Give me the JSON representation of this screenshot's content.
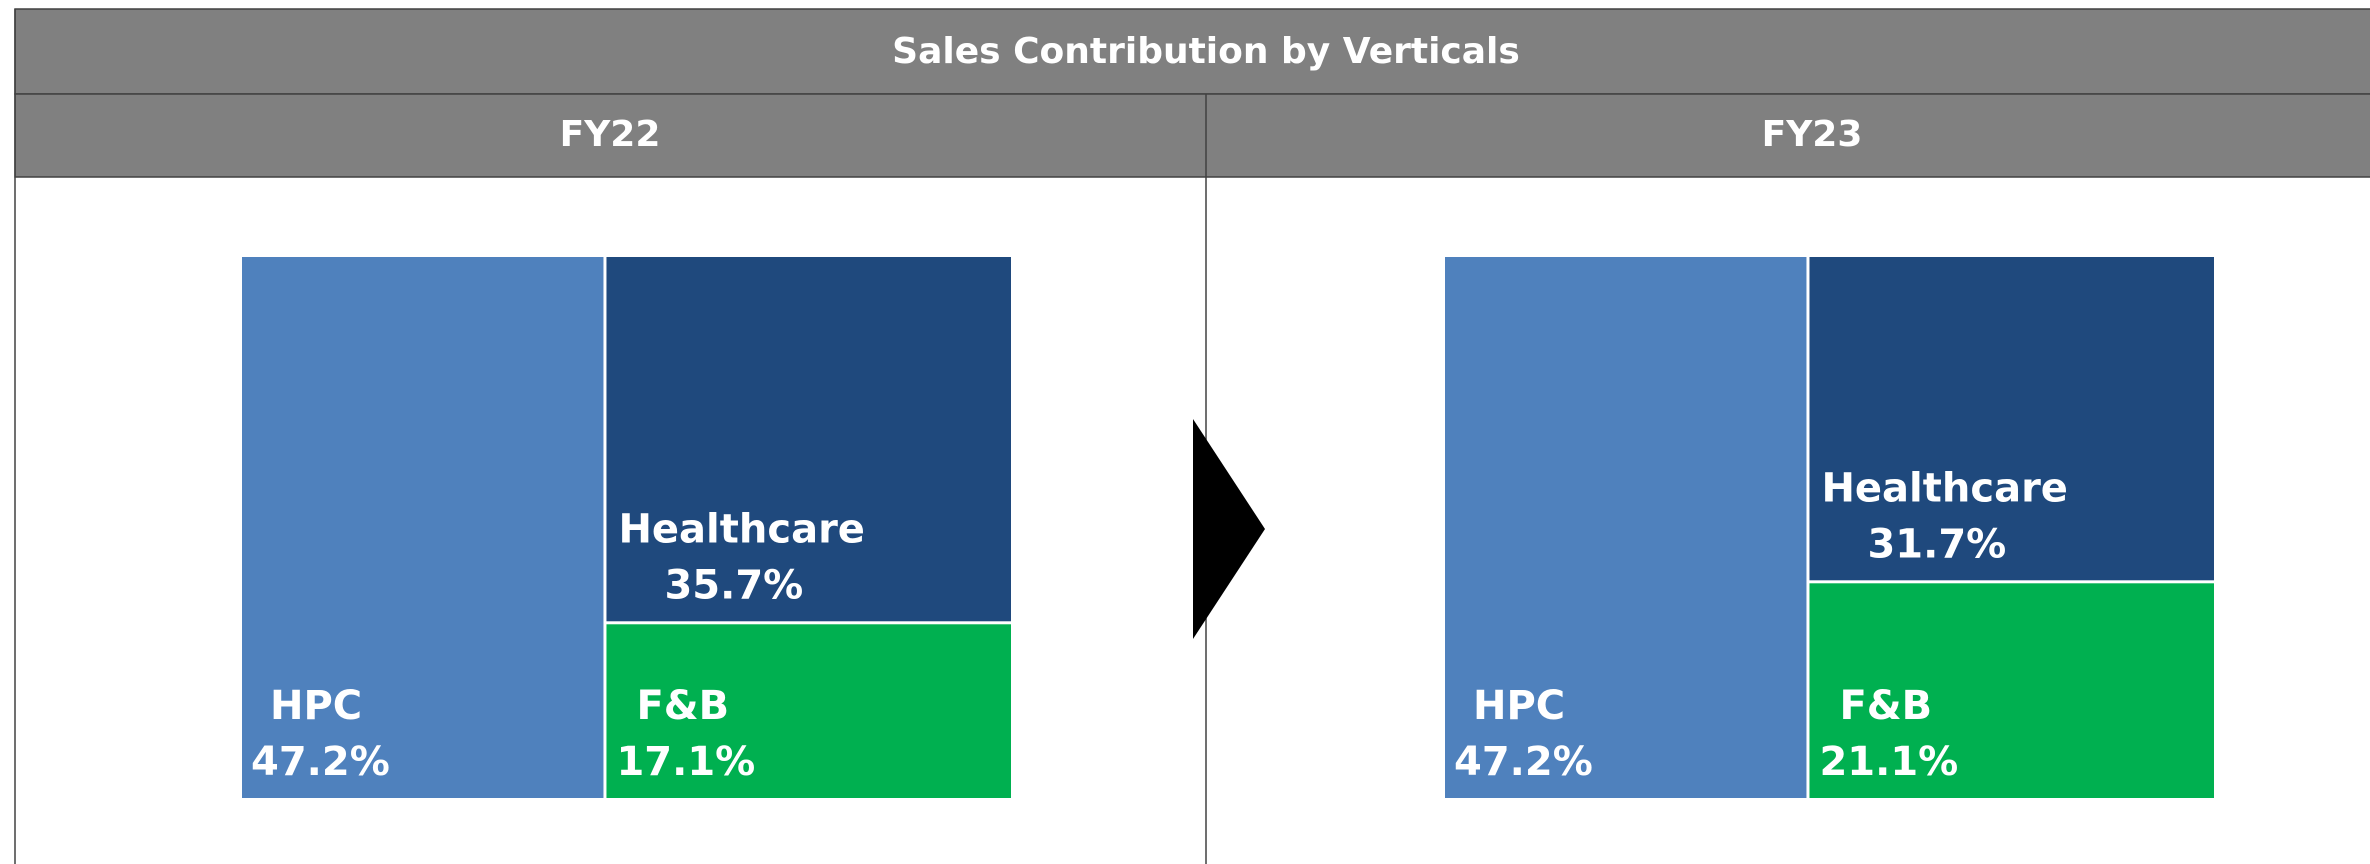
{
  "title": "Sales Contribution by Verticals",
  "chart_data": [
    {
      "type": "treemap",
      "title": "FY22",
      "categories": [
        "HPC",
        "Healthcare",
        "F&B"
      ],
      "values": [
        47.2,
        35.7,
        17.1
      ],
      "value_labels": [
        "47.2%",
        "35.7%",
        "17.1%"
      ],
      "colors": [
        "#4f81bd",
        "#1f497d",
        "#00b050"
      ]
    },
    {
      "type": "treemap",
      "title": "FY23",
      "categories": [
        "HPC",
        "Healthcare",
        "F&B"
      ],
      "values": [
        47.2,
        31.7,
        21.1
      ],
      "value_labels": [
        "47.2%",
        "31.7%",
        "21.1%"
      ],
      "colors": [
        "#4f81bd",
        "#1f497d",
        "#00b050"
      ]
    }
  ]
}
